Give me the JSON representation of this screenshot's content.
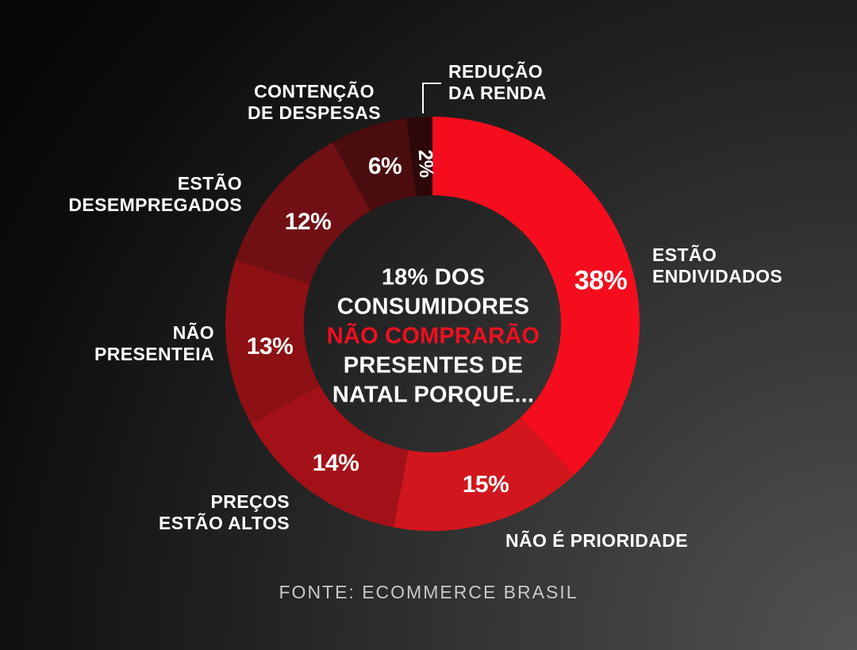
{
  "chart_data": {
    "type": "pie",
    "variant": "donut",
    "direction": "clockwise",
    "start_angle_deg": 0,
    "legend_position": "around-ring",
    "center_text": {
      "top": "18% DOS\nCONSUMIDORES",
      "highlight": "NÃO COMPRARÃO",
      "bottom": "PRESENTES DE\nNATAL PORQUE...",
      "highlight_color": "#ee1020"
    },
    "slices": [
      {
        "label": "ESTÃO\nENDIVIDADOS",
        "pct_label": "38%",
        "value": 38,
        "color": "#f50d1d"
      },
      {
        "label": "NÃO É PRIORIDADE",
        "pct_label": "15%",
        "value": 15,
        "color": "#d2161d"
      },
      {
        "label": "PREÇOS\nESTÃO ALTOS",
        "pct_label": "14%",
        "value": 14,
        "color": "#a31118"
      },
      {
        "label": "NÃO\nPRESENTEIA",
        "pct_label": "13%",
        "value": 13,
        "color": "#8c1014"
      },
      {
        "label": "ESTÃO\nDESEMPREGADOS",
        "pct_label": "12%",
        "value": 12,
        "color": "#701014"
      },
      {
        "label": "CONTENÇÃO\nDE DESPESAS",
        "pct_label": "6%",
        "value": 6,
        "color": "#4a0c0f"
      },
      {
        "label": "REDUÇÃO\nDA RENDA",
        "pct_label": "2%",
        "value": 2,
        "color": "#2d080a"
      }
    ],
    "source": "FONTE: ECOMMERCE BRASIL"
  }
}
